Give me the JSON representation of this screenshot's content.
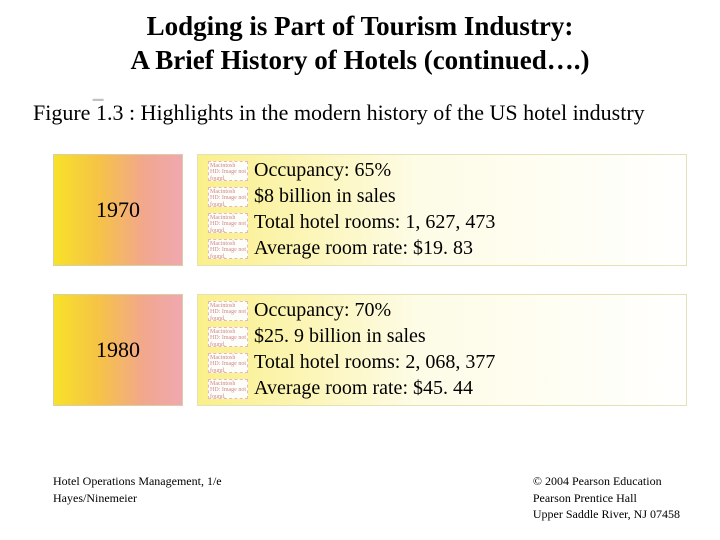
{
  "title_line1": "Lodging is Part of Tourism Industry:",
  "title_line2": "A Brief History of Hotels (continued….)",
  "figure_label": "Figure 1.3 : Highlights in the modern history of the US hotel industry",
  "bullet_placeholder_text": "Macintosh HD: Image not found.",
  "rows": [
    {
      "year": "1970",
      "facts": [
        "Occupancy: 65%",
        "$8 billion in sales",
        "Total hotel rooms: 1, 627, 473",
        "Average room rate: $19. 83"
      ]
    },
    {
      "year": "1980",
      "facts": [
        "Occupancy: 70%",
        "$25. 9 billion in sales",
        "Total hotel rooms: 2, 068, 377",
        "Average room rate: $45. 44"
      ]
    }
  ],
  "footer": {
    "left_line1": "Hotel Operations Management, 1/e",
    "left_line2": "Hayes/Ninemeier",
    "right_line1": "© 2004 Pearson Education",
    "right_line2": "Pearson Prentice Hall",
    "right_line3": "Upper Saddle River, NJ 07458"
  },
  "colors": {
    "year_gradient": [
      "#f7e229",
      "#f6c346",
      "#f2a78d",
      "#efa8b1"
    ],
    "facts_gradient": [
      "#faf08a",
      "#fbf3a8",
      "#fdfce6",
      "#ffffff"
    ]
  }
}
